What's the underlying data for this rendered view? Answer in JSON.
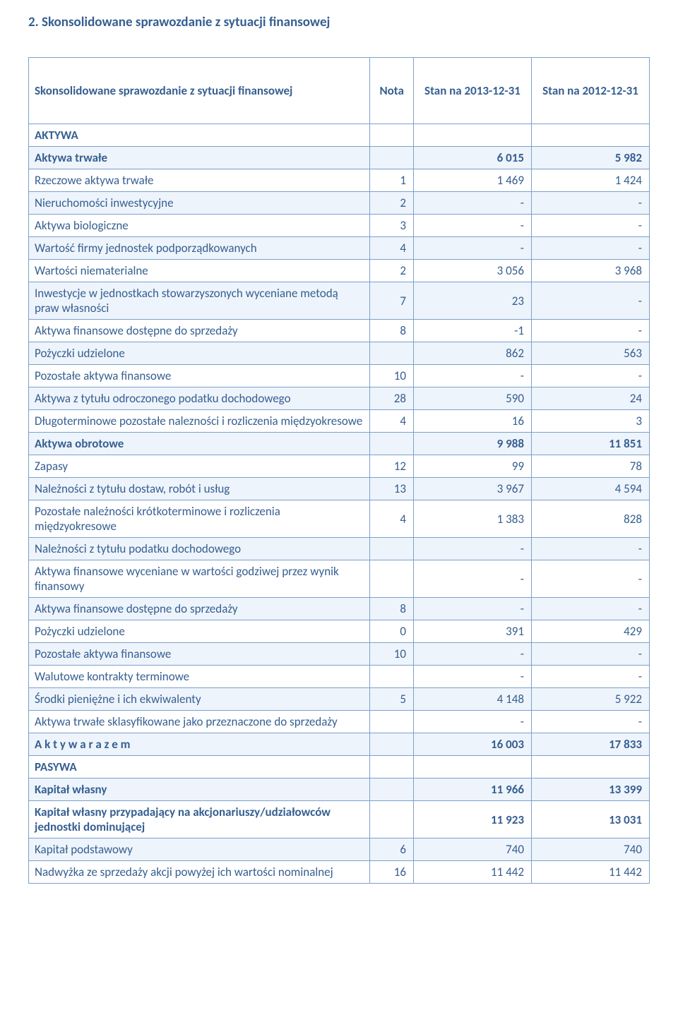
{
  "section_title": "2. Skonsolidowane sprawozdanie z sytuacji finansowej",
  "colors": {
    "heading": "#365f91",
    "border": "#7ba0cd",
    "band": "#eef4fb",
    "text": "#365f91",
    "background": "#ffffff"
  },
  "table": {
    "header": {
      "label": "Skonsolidowane sprawozdanie z sytuacji finansowej",
      "nota": "Nota",
      "col1": "Stan na 2013-12-31",
      "col2": "Stan na 2012-12-31"
    },
    "rows": [
      {
        "label": "AKTYWA",
        "nota": "",
        "v1": "",
        "v2": "",
        "bold": true,
        "band": false
      },
      {
        "label": "Aktywa trwałe",
        "nota": "",
        "v1": "6 015",
        "v2": "5 982",
        "bold": true,
        "band": true
      },
      {
        "label": "Rzeczowe aktywa trwałe",
        "nota": "1",
        "v1": "1 469",
        "v2": "1 424",
        "bold": false,
        "band": false
      },
      {
        "label": "Nieruchomości inwestycyjne",
        "nota": "2",
        "v1": "-",
        "v2": "-",
        "bold": false,
        "band": true
      },
      {
        "label": "Aktywa biologiczne",
        "nota": "3",
        "v1": "-",
        "v2": "-",
        "bold": false,
        "band": false
      },
      {
        "label": "Wartość firmy jednostek podporządkowanych",
        "nota": "4",
        "v1": "-",
        "v2": "-",
        "bold": false,
        "band": true
      },
      {
        "label": "Wartości niematerialne",
        "nota": "2",
        "v1": "3 056",
        "v2": "3 968",
        "bold": false,
        "band": false
      },
      {
        "label": "Inwestycje w jednostkach stowarzyszonych wyceniane metodą praw własności",
        "nota": "7",
        "v1": "23",
        "v2": "-",
        "bold": false,
        "band": true
      },
      {
        "label": "Aktywa finansowe dostępne do sprzedaży",
        "nota": "8",
        "v1": "-1",
        "v2": "-",
        "bold": false,
        "band": false
      },
      {
        "label": "Pożyczki udzielone",
        "nota": "",
        "v1": "862",
        "v2": "563",
        "bold": false,
        "band": true
      },
      {
        "label": "Pozostałe aktywa finansowe",
        "nota": "10",
        "v1": "-",
        "v2": "-",
        "bold": false,
        "band": false
      },
      {
        "label": "Aktywa z tytułu odroczonego podatku dochodowego",
        "nota": "28",
        "v1": "590",
        "v2": "24",
        "bold": false,
        "band": true
      },
      {
        "label": "Długoterminowe pozostałe nalezności i rozliczenia międzyokresowe",
        "nota": "4",
        "v1": "16",
        "v2": "3",
        "bold": false,
        "band": false
      },
      {
        "label": "Aktywa obrotowe",
        "nota": "",
        "v1": "9 988",
        "v2": "11 851",
        "bold": true,
        "band": true
      },
      {
        "label": "Zapasy",
        "nota": "12",
        "v1": "99",
        "v2": "78",
        "bold": false,
        "band": false
      },
      {
        "label": "Należności z tytułu dostaw, robót i usług",
        "nota": "13",
        "v1": "3 967",
        "v2": "4 594",
        "bold": false,
        "band": true
      },
      {
        "label": "Pozostałe należności krótkoterminowe i rozliczenia międzyokresowe",
        "nota": "4",
        "v1": "1 383",
        "v2": "828",
        "bold": false,
        "band": false
      },
      {
        "label": "Należności z tytułu podatku dochodowego",
        "nota": "",
        "v1": "-",
        "v2": "-",
        "bold": false,
        "band": true
      },
      {
        "label": "Aktywa finansowe wyceniane w wartości godziwej przez wynik finansowy",
        "nota": "",
        "v1": "-",
        "v2": "-",
        "bold": false,
        "band": false
      },
      {
        "label": "Aktywa finansowe dostępne do sprzedaży",
        "nota": "8",
        "v1": "-",
        "v2": "-",
        "bold": false,
        "band": true
      },
      {
        "label": "Pożyczki udzielone",
        "nota": "0",
        "v1": "391",
        "v2": "429",
        "bold": false,
        "band": false
      },
      {
        "label": "Pozostałe aktywa finansowe",
        "nota": "10",
        "v1": "-",
        "v2": "-",
        "bold": false,
        "band": true
      },
      {
        "label": "Walutowe kontrakty terminowe",
        "nota": "",
        "v1": "-",
        "v2": "-",
        "bold": false,
        "band": false
      },
      {
        "label": "Środki pieniężne i ich ekwiwalenty",
        "nota": "5",
        "v1": "4 148",
        "v2": "5 922",
        "bold": false,
        "band": true
      },
      {
        "label": "Aktywa trwałe sklasyfikowane jako przeznaczone do sprzedaży",
        "nota": "",
        "v1": "-",
        "v2": "-",
        "bold": false,
        "band": false
      },
      {
        "label": "A k t y w a   r a z e m",
        "nota": "",
        "v1": "16 003",
        "v2": "17 833",
        "bold": true,
        "band": true
      },
      {
        "label": "PASYWA",
        "nota": "",
        "v1": "",
        "v2": "",
        "bold": true,
        "band": false
      },
      {
        "label": "Kapitał własny",
        "nota": "",
        "v1": "11 966",
        "v2": "13 399",
        "bold": true,
        "band": true
      },
      {
        "label": "Kapitał własny przypadający na akcjonariuszy/udziałowców jednostki dominującej",
        "nota": "",
        "v1": "11 923",
        "v2": "13 031",
        "bold": true,
        "band": false
      },
      {
        "label": "Kapitał podstawowy",
        "nota": "6",
        "v1": "740",
        "v2": "740",
        "bold": false,
        "band": true
      },
      {
        "label": "Nadwyżka ze sprzedaży akcji powyżej ich wartości nominalnej",
        "nota": "16",
        "v1": "11 442",
        "v2": "11 442",
        "bold": false,
        "band": false
      }
    ]
  }
}
